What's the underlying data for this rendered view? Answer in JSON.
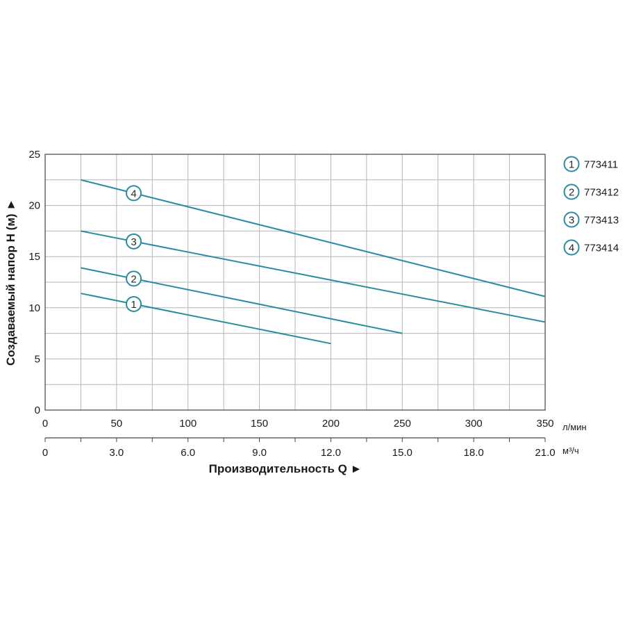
{
  "chart_data": {
    "type": "line",
    "ylabel": "Создаваемый напор H (м) ►",
    "xlabel": "Производительность Q ►",
    "x_unit_primary": "л/мин",
    "x_unit_secondary": "м³/ч",
    "xlim": [
      0,
      350
    ],
    "ylim": [
      0,
      25
    ],
    "x_ticks": [
      "0",
      "50",
      "100",
      "150",
      "200",
      "250",
      "300",
      "350"
    ],
    "x_tick_values": [
      0,
      50,
      100,
      150,
      200,
      250,
      300,
      350
    ],
    "x2_ticks": [
      "0",
      "3.0",
      "6.0",
      "9.0",
      "12.0",
      "15.0",
      "18.0",
      "21.0"
    ],
    "x2_tick_values": [
      0,
      50,
      100,
      150,
      200,
      250,
      300,
      350
    ],
    "y_ticks": [
      "0",
      "5",
      "10",
      "15",
      "20",
      "25"
    ],
    "y_tick_values": [
      0,
      5,
      10,
      15,
      20,
      25
    ],
    "grid": true,
    "legend_position": "right",
    "line_color": "#2a8ca0",
    "series": [
      {
        "name": "773411",
        "marker": "1",
        "x": [
          25,
          200
        ],
        "y": [
          11.4,
          6.5
        ],
        "label_x": 62
      },
      {
        "name": "773412",
        "marker": "2",
        "x": [
          25,
          250
        ],
        "y": [
          13.9,
          7.5
        ],
        "label_x": 62
      },
      {
        "name": "773413",
        "marker": "3",
        "x": [
          25,
          350
        ],
        "y": [
          17.5,
          8.6
        ],
        "label_x": 62
      },
      {
        "name": "773414",
        "marker": "4",
        "x": [
          25,
          350
        ],
        "y": [
          22.5,
          11.1
        ],
        "label_x": 62
      }
    ]
  }
}
